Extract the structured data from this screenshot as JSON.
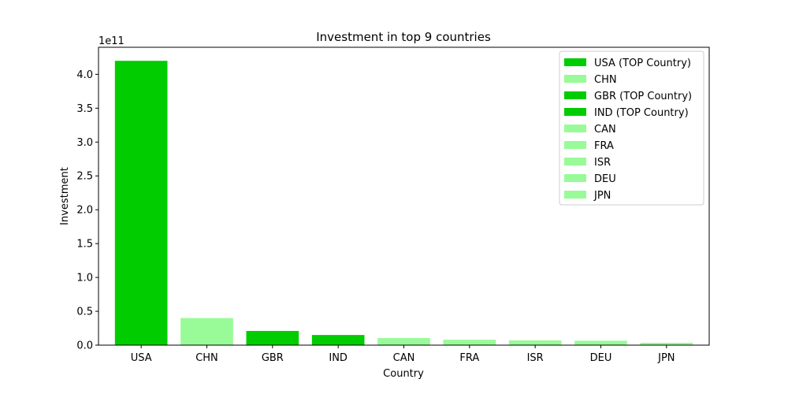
{
  "chart_data": {
    "type": "bar",
    "title": "Investment in top 9 countries",
    "xlabel": "Country",
    "ylabel": "Investment",
    "y_exponent_label": "1e11",
    "y_scale_factor": 100000000000,
    "ylim": [
      0,
      440000000000
    ],
    "yticks": [
      {
        "value": 0,
        "label": "0.0"
      },
      {
        "value": 50000000000,
        "label": "0.5"
      },
      {
        "value": 100000000000,
        "label": "1.0"
      },
      {
        "value": 150000000000,
        "label": "1.5"
      },
      {
        "value": 200000000000,
        "label": "2.0"
      },
      {
        "value": 250000000000,
        "label": "2.5"
      },
      {
        "value": 300000000000,
        "label": "3.0"
      },
      {
        "value": 350000000000,
        "label": "3.5"
      },
      {
        "value": 400000000000,
        "label": "4.0"
      }
    ],
    "grid": false,
    "legend_position": "top-right",
    "colors": {
      "top": "#00cc00",
      "other": "#98fb98"
    },
    "bars": [
      {
        "category": "USA",
        "value": 420000000000,
        "top": true,
        "legend": "USA (TOP Country)"
      },
      {
        "category": "CHN",
        "value": 40000000000,
        "top": false,
        "legend": "CHN"
      },
      {
        "category": "GBR",
        "value": 21000000000,
        "top": true,
        "legend": "GBR (TOP Country)"
      },
      {
        "category": "IND",
        "value": 15000000000,
        "top": true,
        "legend": "IND (TOP Country)"
      },
      {
        "category": "CAN",
        "value": 10500000000,
        "top": false,
        "legend": "CAN"
      },
      {
        "category": "FRA",
        "value": 8000000000,
        "top": false,
        "legend": "FRA"
      },
      {
        "category": "ISR",
        "value": 7000000000,
        "top": false,
        "legend": "ISR"
      },
      {
        "category": "DEU",
        "value": 6500000000,
        "top": false,
        "legend": "DEU"
      },
      {
        "category": "JPN",
        "value": 3500000000,
        "top": false,
        "legend": "JPN"
      }
    ]
  }
}
